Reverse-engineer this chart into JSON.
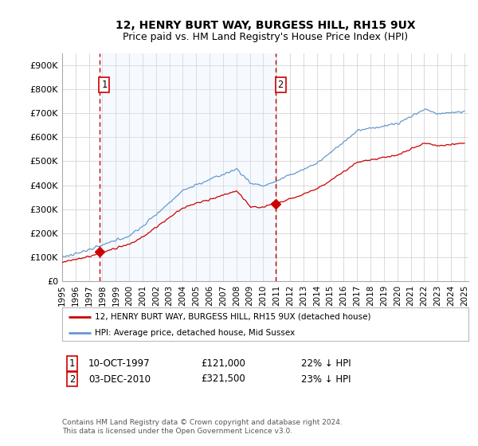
{
  "title": "12, HENRY BURT WAY, BURGESS HILL, RH15 9UX",
  "subtitle": "Price paid vs. HM Land Registry's House Price Index (HPI)",
  "ylim": [
    0,
    950000
  ],
  "yticks": [
    0,
    100000,
    200000,
    300000,
    400000,
    500000,
    600000,
    700000,
    800000,
    900000
  ],
  "ytick_labels": [
    "£0",
    "£100K",
    "£200K",
    "£300K",
    "£400K",
    "£500K",
    "£600K",
    "£700K",
    "£800K",
    "£900K"
  ],
  "xlim_start": 1995.3,
  "xlim_end": 2025.3,
  "xtick_years": [
    1995,
    1996,
    1997,
    1998,
    1999,
    2000,
    2001,
    2002,
    2003,
    2004,
    2005,
    2006,
    2007,
    2008,
    2009,
    2010,
    2011,
    2012,
    2013,
    2014,
    2015,
    2016,
    2017,
    2018,
    2019,
    2020,
    2021,
    2022,
    2023,
    2024,
    2025
  ],
  "sale1_x": 1997.78,
  "sale1_y": 121000,
  "sale1_label": "1",
  "sale1_date": "10-OCT-1997",
  "sale1_price": "£121,000",
  "sale1_pct": "22% ↓ HPI",
  "sale2_x": 2010.92,
  "sale2_y": 321500,
  "sale2_label": "2",
  "sale2_date": "03-DEC-2010",
  "sale2_price": "£321,500",
  "sale2_pct": "23% ↓ HPI",
  "line_color_property": "#cc0000",
  "line_color_hpi": "#6699cc",
  "shade_color": "#ddeeff",
  "marker_color": "#cc0000",
  "dashed_line_color": "#cc0000",
  "legend_label_property": "12, HENRY BURT WAY, BURGESS HILL, RH15 9UX (detached house)",
  "legend_label_hpi": "HPI: Average price, detached house, Mid Sussex",
  "footer": "Contains HM Land Registry data © Crown copyright and database right 2024.\nThis data is licensed under the Open Government Licence v3.0.",
  "background_color": "#ffffff",
  "grid_color": "#cccccc",
  "title_fontsize": 10,
  "subtitle_fontsize": 9
}
